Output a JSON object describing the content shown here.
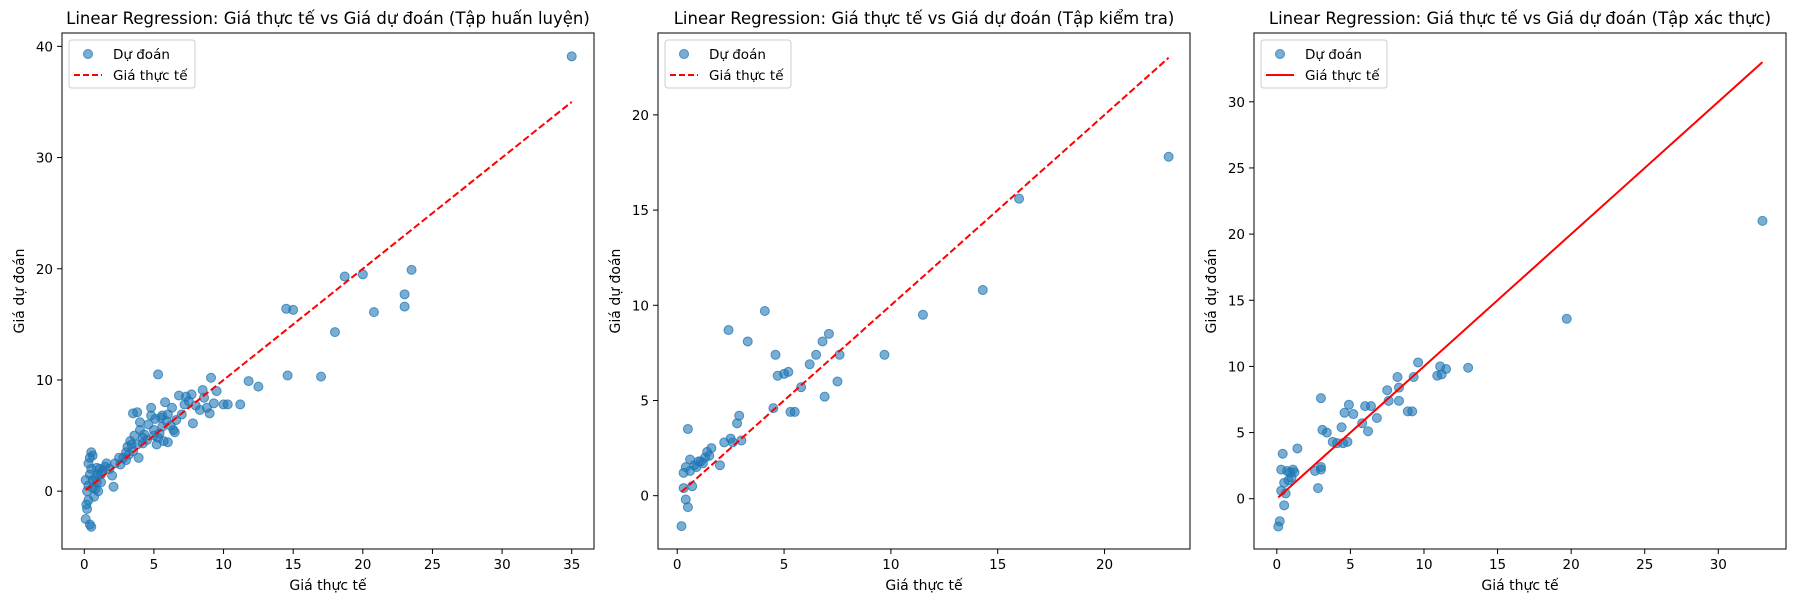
{
  "colors": {
    "scatter": "#1f77b4",
    "ideal_line": "#ff0000",
    "axes": "#000000",
    "background": "#ffffff"
  },
  "chart_data": [
    {
      "type": "scatter",
      "title": "Linear Regression: Giá thực tế vs Giá dự đoán (Tập huấn luyện)",
      "xlabel": "Giá thực tế",
      "ylabel": "Giá dự đoán",
      "xlim": [
        -1.6,
        36.6
      ],
      "ylim": [
        -5.2,
        41.2
      ],
      "xticks": [
        0,
        5,
        10,
        15,
        20,
        25,
        30,
        35
      ],
      "yticks": [
        0,
        10,
        20,
        30,
        40
      ],
      "grid": false,
      "legend_position": "top-left",
      "legend": {
        "scatter_label": "Dự đoán",
        "line_label": "Giá thực tế"
      },
      "ideal_line": {
        "style": "dashed",
        "x": [
          0.1,
          35.0
        ],
        "y": [
          0.1,
          35.0
        ]
      },
      "series": [
        {
          "points": [
            [
              0.1,
              -2.5
            ],
            [
              0.2,
              -1.6
            ],
            [
              0.15,
              -1.2
            ],
            [
              0.3,
              -0.8
            ],
            [
              0.4,
              -3.0
            ],
            [
              0.5,
              -3.2
            ],
            [
              0.2,
              0.0
            ],
            [
              0.3,
              0.5
            ],
            [
              0.1,
              1.0
            ],
            [
              0.4,
              1.5
            ],
            [
              0.5,
              2.0
            ],
            [
              0.6,
              1.0
            ],
            [
              0.8,
              0.2
            ],
            [
              0.3,
              2.5
            ],
            [
              0.4,
              3.0
            ],
            [
              0.5,
              3.5
            ],
            [
              0.6,
              3.2
            ],
            [
              0.7,
              -0.5
            ],
            [
              0.9,
              0.8
            ],
            [
              1.0,
              1.5
            ],
            [
              1.1,
              2.0
            ],
            [
              1.2,
              0.8
            ],
            [
              1.0,
              0.0
            ],
            [
              1.3,
              1.8
            ],
            [
              1.5,
              2.2
            ],
            [
              1.6,
              2.5
            ],
            [
              1.2,
              1.5
            ],
            [
              0.8,
              1.2
            ],
            [
              0.6,
              0.3
            ],
            [
              0.9,
              2.1
            ],
            [
              1.8,
              2.0
            ],
            [
              2.0,
              1.4
            ],
            [
              2.2,
              2.5
            ],
            [
              2.1,
              0.4
            ],
            [
              2.5,
              3.0
            ],
            [
              2.6,
              2.4
            ],
            [
              2.8,
              3.0
            ],
            [
              3.0,
              2.8
            ],
            [
              3.0,
              3.5
            ],
            [
              3.1,
              4.0
            ],
            [
              3.2,
              3.3
            ],
            [
              3.3,
              4.5
            ],
            [
              3.4,
              4.2
            ],
            [
              3.5,
              3.6
            ],
            [
              3.5,
              7.0
            ],
            [
              3.8,
              7.1
            ],
            [
              3.6,
              5.0
            ],
            [
              3.8,
              4.2
            ],
            [
              3.9,
              3.0
            ],
            [
              4.0,
              5.5
            ],
            [
              4.0,
              6.2
            ],
            [
              4.2,
              4.3
            ],
            [
              4.2,
              4.8
            ],
            [
              4.3,
              5.1
            ],
            [
              4.5,
              4.6
            ],
            [
              4.6,
              6.0
            ],
            [
              4.8,
              7.5
            ],
            [
              4.8,
              6.8
            ],
            [
              5.0,
              5.0
            ],
            [
              5.0,
              5.5
            ],
            [
              5.1,
              6.5
            ],
            [
              5.2,
              4.2
            ],
            [
              5.3,
              10.5
            ],
            [
              5.3,
              4.8
            ],
            [
              5.4,
              5.2
            ],
            [
              5.5,
              6.6
            ],
            [
              5.6,
              6.8
            ],
            [
              5.6,
              5.8
            ],
            [
              5.7,
              4.5
            ],
            [
              5.8,
              8.0
            ],
            [
              5.9,
              6.3
            ],
            [
              6.0,
              6.9
            ],
            [
              6.0,
              4.4
            ],
            [
              6.2,
              5.9
            ],
            [
              6.3,
              7.5
            ],
            [
              6.4,
              5.5
            ],
            [
              6.5,
              5.3
            ],
            [
              6.6,
              6.4
            ],
            [
              6.8,
              8.6
            ],
            [
              7.0,
              6.9
            ],
            [
              7.2,
              7.8
            ],
            [
              7.3,
              8.5
            ],
            [
              7.5,
              8.1
            ],
            [
              7.7,
              8.7
            ],
            [
              7.8,
              6.1
            ],
            [
              8.0,
              7.7
            ],
            [
              8.3,
              7.3
            ],
            [
              8.5,
              9.1
            ],
            [
              8.6,
              8.4
            ],
            [
              8.8,
              7.5
            ],
            [
              9.0,
              7.0
            ],
            [
              9.1,
              10.2
            ],
            [
              9.3,
              7.9
            ],
            [
              9.5,
              9.0
            ],
            [
              10.0,
              7.8
            ],
            [
              10.3,
              7.8
            ],
            [
              11.2,
              7.8
            ],
            [
              11.8,
              9.9
            ],
            [
              12.5,
              9.4
            ],
            [
              14.5,
              16.4
            ],
            [
              14.6,
              10.4
            ],
            [
              15.0,
              16.3
            ],
            [
              17.0,
              10.3
            ],
            [
              18.0,
              14.3
            ],
            [
              18.7,
              19.3
            ],
            [
              20.0,
              19.5
            ],
            [
              20.8,
              16.1
            ],
            [
              23.0,
              17.7
            ],
            [
              23.0,
              16.6
            ],
            [
              23.5,
              19.9
            ],
            [
              35.0,
              39.1
            ]
          ]
        }
      ]
    },
    {
      "type": "scatter",
      "title": "Linear Regression: Giá thực tế vs Giá dự đoán (Tập kiểm tra)",
      "xlabel": "Giá thực tế",
      "ylabel": "Giá dự đoán",
      "xlim": [
        -0.9,
        24.0
      ],
      "ylim": [
        -2.8,
        24.3
      ],
      "xticks": [
        0,
        5,
        10,
        15,
        20
      ],
      "yticks": [
        0,
        5,
        10,
        15,
        20
      ],
      "grid": false,
      "legend_position": "top-left",
      "legend": {
        "scatter_label": "Dự đoán",
        "line_label": "Giá thực tế"
      },
      "ideal_line": {
        "style": "dashed",
        "x": [
          0.2,
          23.0
        ],
        "y": [
          0.2,
          23.0
        ]
      },
      "series": [
        {
          "points": [
            [
              0.2,
              -1.6
            ],
            [
              0.3,
              0.4
            ],
            [
              0.3,
              1.2
            ],
            [
              0.4,
              -0.2
            ],
            [
              0.4,
              1.5
            ],
            [
              0.5,
              -0.6
            ],
            [
              0.5,
              3.5
            ],
            [
              0.6,
              1.9
            ],
            [
              0.6,
              1.3
            ],
            [
              0.7,
              0.5
            ],
            [
              0.8,
              1.6
            ],
            [
              0.9,
              1.5
            ],
            [
              1.0,
              1.8
            ],
            [
              1.1,
              1.8
            ],
            [
              1.2,
              1.7
            ],
            [
              1.3,
              2.0
            ],
            [
              1.4,
              2.3
            ],
            [
              1.5,
              2.1
            ],
            [
              1.6,
              2.5
            ],
            [
              2.0,
              1.6
            ],
            [
              2.2,
              2.8
            ],
            [
              2.4,
              8.7
            ],
            [
              2.5,
              3.0
            ],
            [
              2.6,
              2.8
            ],
            [
              2.8,
              3.8
            ],
            [
              2.9,
              4.2
            ],
            [
              3.0,
              2.9
            ],
            [
              3.3,
              8.1
            ],
            [
              4.1,
              9.7
            ],
            [
              4.5,
              4.6
            ],
            [
              4.6,
              7.4
            ],
            [
              4.7,
              6.3
            ],
            [
              5.0,
              6.4
            ],
            [
              5.2,
              6.5
            ],
            [
              5.3,
              4.4
            ],
            [
              5.5,
              4.4
            ],
            [
              5.8,
              5.7
            ],
            [
              6.2,
              6.9
            ],
            [
              6.5,
              7.4
            ],
            [
              6.8,
              8.1
            ],
            [
              6.9,
              5.2
            ],
            [
              7.1,
              8.5
            ],
            [
              7.5,
              6.0
            ],
            [
              7.6,
              7.4
            ],
            [
              9.7,
              7.4
            ],
            [
              11.5,
              9.5
            ],
            [
              14.3,
              10.8
            ],
            [
              16.0,
              15.6
            ],
            [
              23.0,
              17.8
            ]
          ]
        }
      ]
    },
    {
      "type": "scatter",
      "title": "Linear Regression: Giá thực tế vs Giá dự đoán (Tập xác thực)",
      "xlabel": "Giá thực tế",
      "ylabel": "Giá dự đoán",
      "xlim": [
        -1.55,
        34.6
      ],
      "ylim": [
        -3.8,
        35.2
      ],
      "xticks": [
        0,
        5,
        10,
        15,
        20,
        25,
        30
      ],
      "yticks": [
        0,
        5,
        10,
        15,
        20,
        25,
        30
      ],
      "grid": false,
      "legend_position": "top-left",
      "legend": {
        "scatter_label": "Dự đoán",
        "line_label": "Giá thực tế"
      },
      "ideal_line": {
        "style": "solid",
        "x": [
          0.1,
          33.0
        ],
        "y": [
          0.1,
          33.0
        ]
      },
      "series": [
        {
          "points": [
            [
              0.1,
              -2.1
            ],
            [
              0.2,
              -1.7
            ],
            [
              0.3,
              0.6
            ],
            [
              0.3,
              2.2
            ],
            [
              0.4,
              3.4
            ],
            [
              0.5,
              -0.5
            ],
            [
              0.5,
              1.2
            ],
            [
              0.6,
              0.4
            ],
            [
              0.7,
              2.1
            ],
            [
              0.8,
              1.4
            ],
            [
              0.9,
              2.0
            ],
            [
              1.0,
              1.6
            ],
            [
              1.1,
              2.2
            ],
            [
              1.2,
              2.0
            ],
            [
              1.4,
              3.8
            ],
            [
              2.6,
              2.1
            ],
            [
              2.8,
              0.8
            ],
            [
              3.0,
              2.2
            ],
            [
              3.0,
              2.4
            ],
            [
              3.0,
              7.6
            ],
            [
              3.1,
              5.2
            ],
            [
              3.4,
              5.0
            ],
            [
              3.8,
              4.3
            ],
            [
              4.1,
              4.2
            ],
            [
              4.4,
              5.4
            ],
            [
              4.5,
              4.2
            ],
            [
              4.6,
              6.5
            ],
            [
              4.8,
              4.3
            ],
            [
              4.9,
              7.1
            ],
            [
              5.2,
              6.4
            ],
            [
              5.8,
              5.7
            ],
            [
              6.0,
              7.0
            ],
            [
              6.2,
              5.1
            ],
            [
              6.4,
              7.0
            ],
            [
              6.8,
              6.1
            ],
            [
              7.5,
              8.2
            ],
            [
              7.6,
              7.4
            ],
            [
              8.2,
              9.2
            ],
            [
              8.3,
              8.4
            ],
            [
              8.3,
              7.4
            ],
            [
              8.9,
              6.6
            ],
            [
              9.2,
              6.6
            ],
            [
              9.3,
              9.2
            ],
            [
              9.6,
              10.3
            ],
            [
              10.9,
              9.3
            ],
            [
              11.1,
              10.0
            ],
            [
              11.2,
              9.4
            ],
            [
              11.5,
              9.8
            ],
            [
              13.0,
              9.9
            ],
            [
              19.7,
              13.6
            ],
            [
              33.0,
              21.0
            ]
          ]
        }
      ]
    }
  ]
}
